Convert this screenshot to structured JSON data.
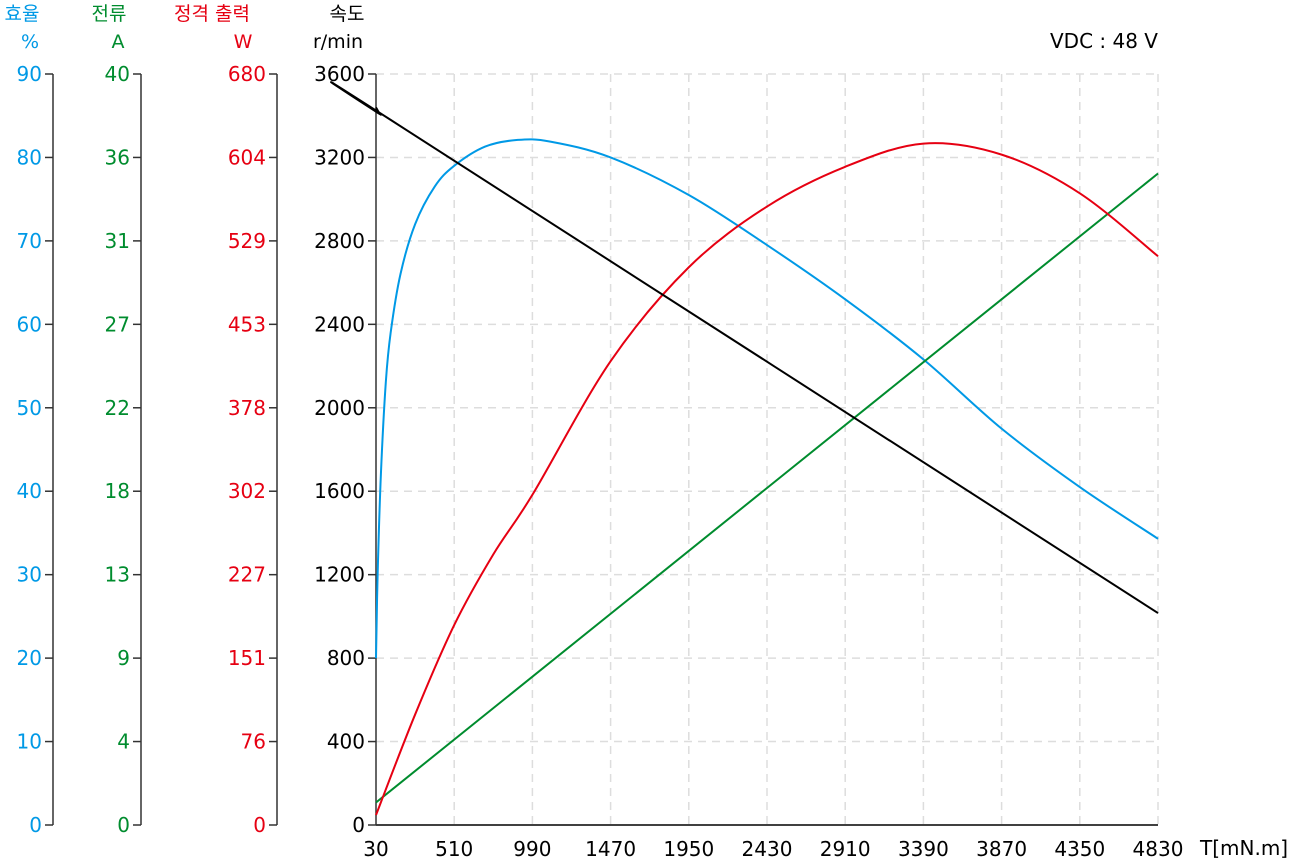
{
  "colors": {
    "efficiency": "#0099e6",
    "current": "#008c2e",
    "power": "#e60012",
    "speed": "#000000",
    "grid": "#dddddd"
  },
  "chart_data": {
    "type": "line",
    "annotation": "VDC : 48 V",
    "xlabel": "T[mN.m]",
    "xlim": [
      30,
      4830
    ],
    "x_ticks": [
      "30",
      "510",
      "990",
      "1470",
      "1950",
      "2430",
      "2910",
      "3390",
      "3870",
      "4350",
      "4830"
    ],
    "grid": true,
    "axes": [
      {
        "key": "efficiency",
        "title": "효율",
        "unit": "%",
        "ylim": [
          0,
          90
        ],
        "ticks": [
          "0",
          "10",
          "20",
          "30",
          "40",
          "50",
          "60",
          "70",
          "80",
          "90"
        ]
      },
      {
        "key": "current",
        "title": "전류",
        "unit": "A",
        "ylim": [
          0,
          40
        ],
        "ticks": [
          "0",
          "4",
          "9",
          "13",
          "18",
          "22",
          "27",
          "31",
          "36",
          "40"
        ]
      },
      {
        "key": "power",
        "title": "정격 출력",
        "unit": "W",
        "ylim": [
          0,
          680
        ],
        "ticks": [
          "0",
          "76",
          "151",
          "227",
          "302",
          "378",
          "453",
          "529",
          "604",
          "680"
        ]
      },
      {
        "key": "speed",
        "title": "속도",
        "unit": "r/min",
        "ylim": [
          0,
          3600
        ],
        "ticks": [
          "0",
          "400",
          "800",
          "1200",
          "1600",
          "2000",
          "2400",
          "2800",
          "3200",
          "3600"
        ]
      }
    ],
    "series": [
      {
        "axis": "efficiency",
        "points": [
          [
            30,
            20
          ],
          [
            40,
            30
          ],
          [
            60,
            42
          ],
          [
            90,
            53
          ],
          [
            120,
            59
          ],
          [
            180,
            66
          ],
          [
            270,
            72
          ],
          [
            390,
            76.5
          ],
          [
            510,
            79
          ],
          [
            700,
            81.3
          ],
          [
            900,
            82.1
          ],
          [
            1100,
            81.9
          ],
          [
            1470,
            80
          ],
          [
            1950,
            75.5
          ],
          [
            2430,
            69.5
          ],
          [
            2910,
            63
          ],
          [
            3390,
            55.8
          ],
          [
            3870,
            47.5
          ],
          [
            4350,
            40.5
          ],
          [
            4830,
            34.3
          ]
        ]
      },
      {
        "axis": "current",
        "points": [
          [
            30,
            1.2
          ],
          [
            4830,
            34.7
          ]
        ]
      },
      {
        "axis": "power",
        "points": [
          [
            30,
            9
          ],
          [
            270,
            100
          ],
          [
            510,
            181
          ],
          [
            750,
            245
          ],
          [
            990,
            299
          ],
          [
            1470,
            420
          ],
          [
            1950,
            505
          ],
          [
            2430,
            560
          ],
          [
            2910,
            596
          ],
          [
            3390,
            617
          ],
          [
            3870,
            607
          ],
          [
            4350,
            572
          ],
          [
            4830,
            515
          ]
        ]
      },
      {
        "axis": "speed",
        "points": [
          [
            30,
            3440
          ],
          [
            60,
            3405
          ],
          [
            120,
            3380
          ],
          [
            4830,
            1016
          ]
        ]
      }
    ]
  }
}
